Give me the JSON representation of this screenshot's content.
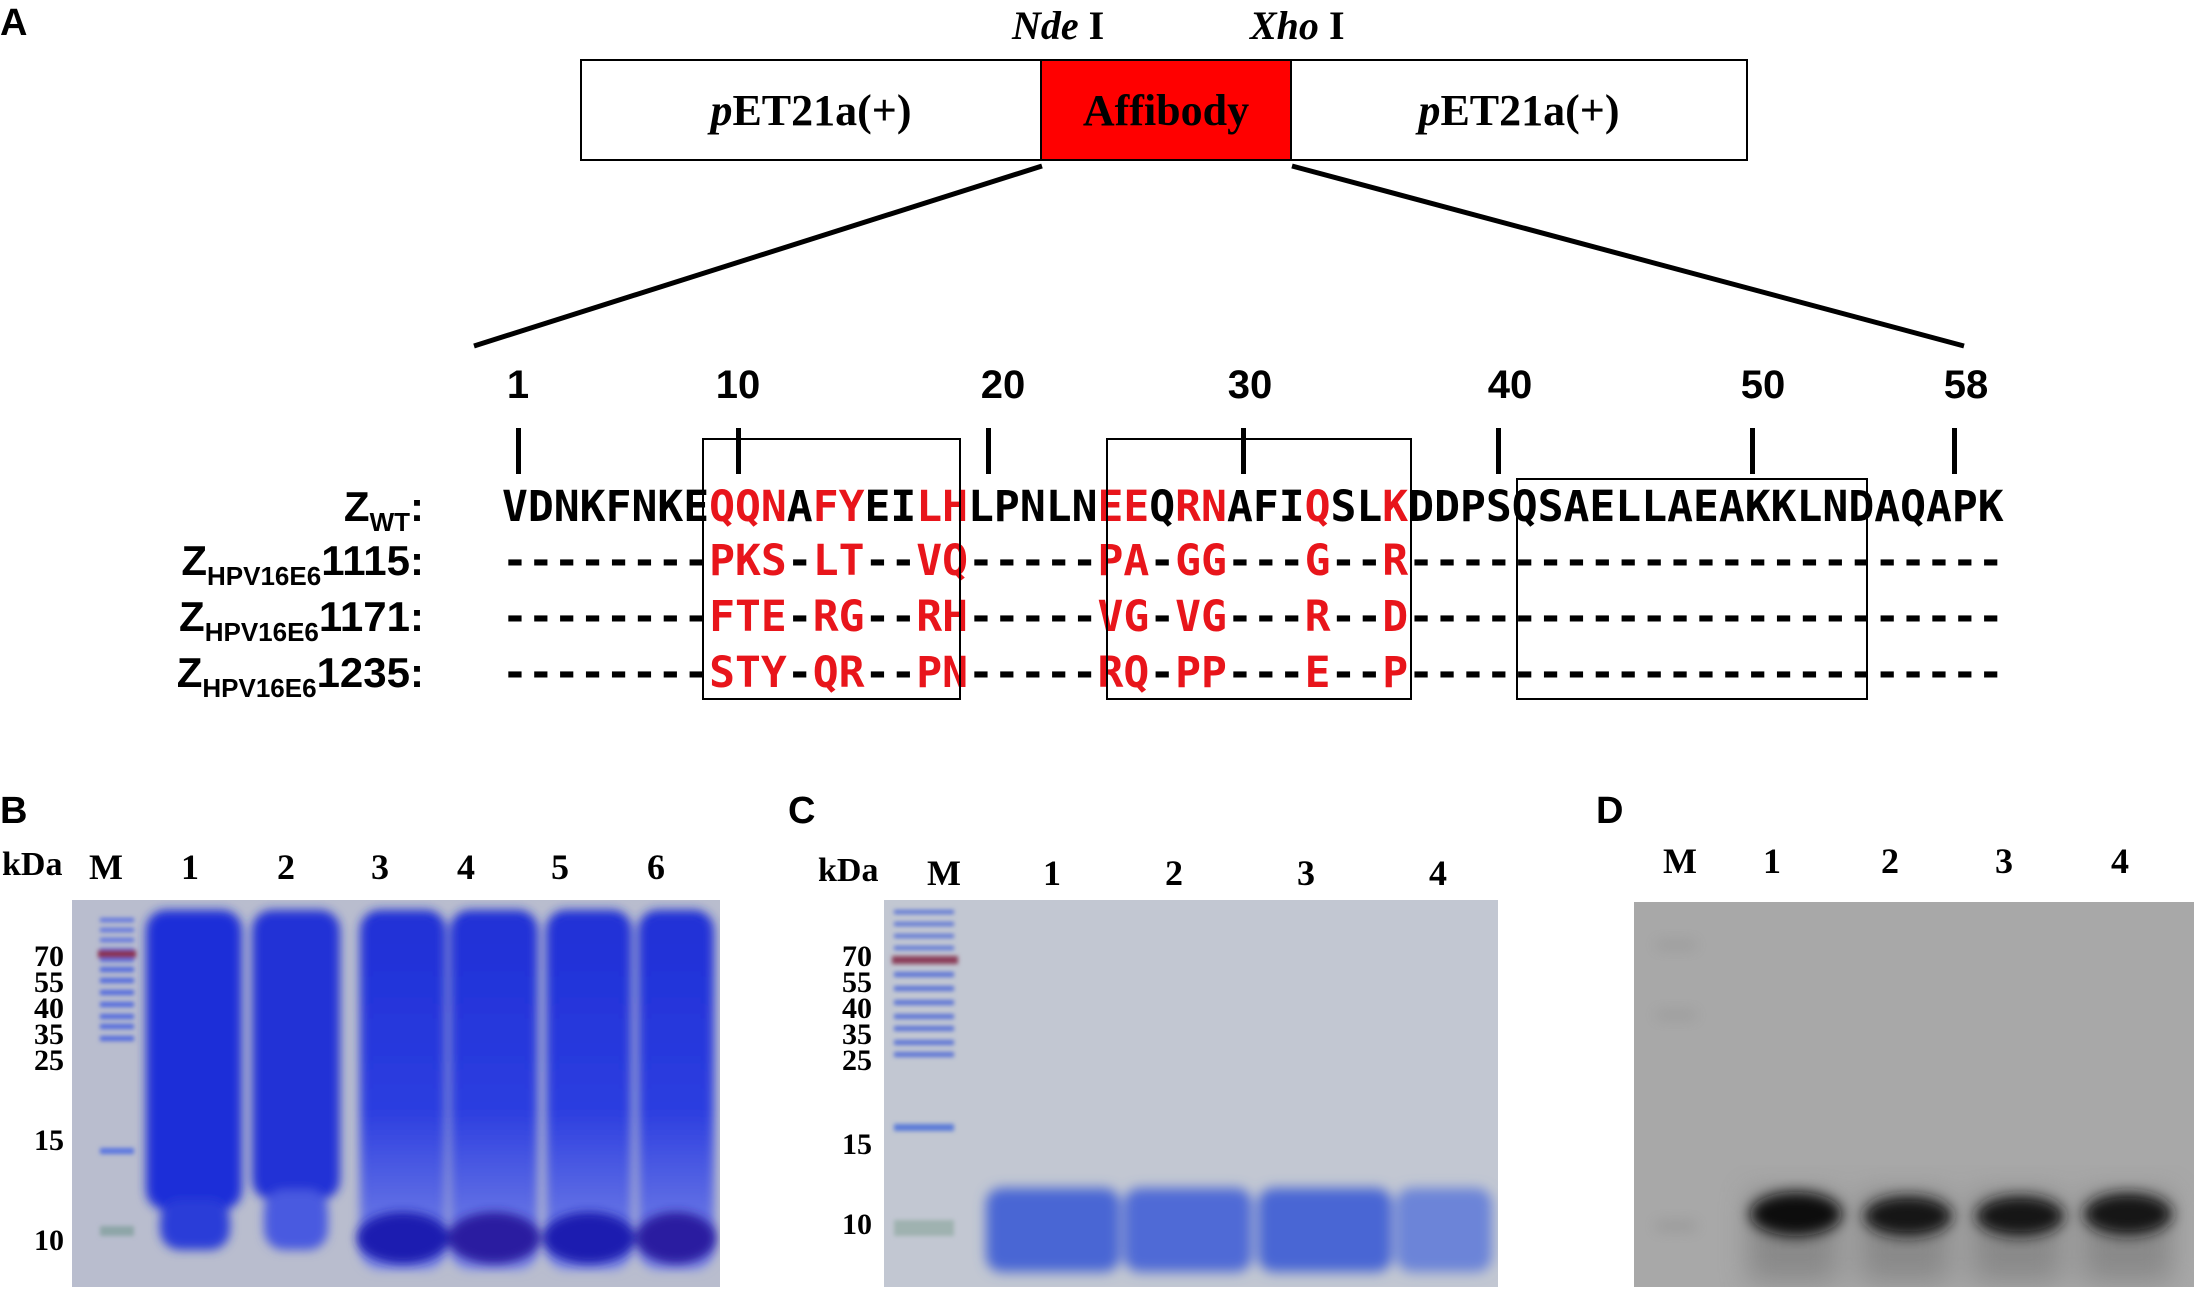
{
  "panels": {
    "A": "A",
    "B": "B",
    "C": "C",
    "D": "D"
  },
  "construct": {
    "enzyme_left_italic": "Nde",
    "enzyme_left_roman": " I",
    "enzyme_right_italic": "Xho",
    "enzyme_right_roman": " I",
    "vector_left_italic": "p",
    "vector_left_roman": "ET21a(+)",
    "insert": "Affibody",
    "vector_right_italic": "p",
    "vector_right_roman": "ET21a(+)"
  },
  "alignment": {
    "positions": [
      "1",
      "10",
      "20",
      "30",
      "40",
      "50",
      "58"
    ],
    "rows": [
      {
        "name_main": "Z",
        "name_sub": "WT",
        "name_suffix": ":",
        "sequence": "VDNKFNKEQQNAFYEILHLPNLNEEQRNAFIQSLKDDPSQSAELLAEAKKLNDAQAPK"
      },
      {
        "name_main": "Z",
        "name_sub": "HPV16E6",
        "name_suffix": "1115:",
        "sequence": "--------PKS-LT--VQ-----PA-GG---G--R-----------------------"
      },
      {
        "name_main": "Z",
        "name_sub": "HPV16E6",
        "name_suffix": "1171:",
        "sequence": "--------FTE-RG--RH-----VG-VG---R--D-----------------------"
      },
      {
        "name_main": "Z",
        "name_sub": "HPV16E6",
        "name_suffix": "1235:",
        "sequence": "--------STY-QR--PN-----RQ-PP---E--P-----------------------"
      }
    ]
  },
  "gels": {
    "B": {
      "unit": "kDa",
      "lanes": [
        "M",
        "1",
        "2",
        "3",
        "4",
        "5",
        "6"
      ],
      "markers": [
        "70",
        "55",
        "40",
        "35",
        "25",
        "15",
        "10"
      ]
    },
    "C": {
      "unit": "kDa",
      "lanes": [
        "M",
        "1",
        "2",
        "3",
        "4"
      ],
      "markers": [
        "70",
        "55",
        "40",
        "35",
        "25",
        "15",
        "10"
      ]
    },
    "D": {
      "lanes": [
        "M",
        "1",
        "2",
        "3",
        "4"
      ]
    }
  },
  "colors": {
    "affibody": "#ff0000",
    "variable_residue": "#e8151b",
    "coomassie": "#2a3bd0",
    "western_band": "#111111"
  }
}
